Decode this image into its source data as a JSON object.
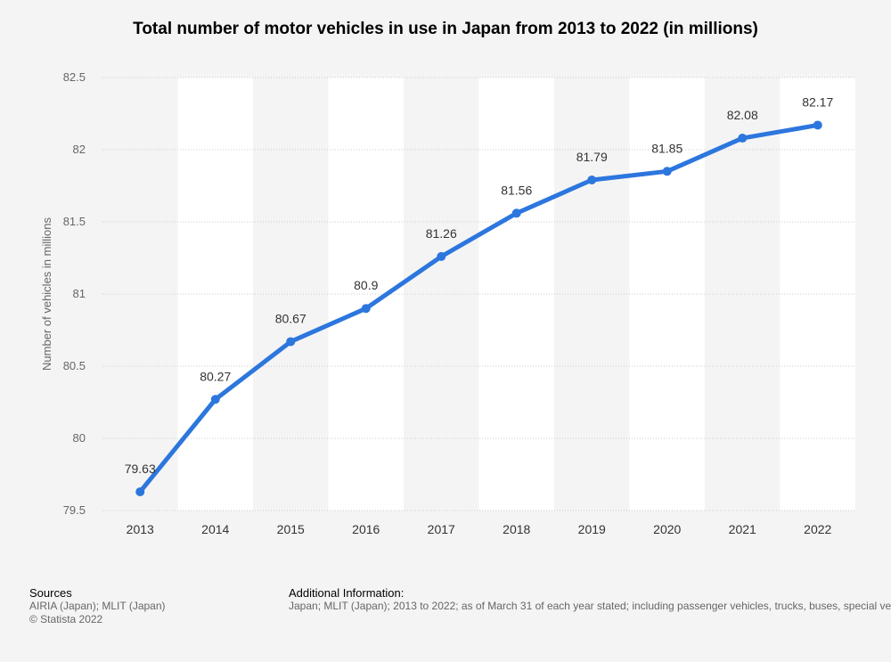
{
  "chart_data": {
    "type": "line",
    "title": "Total number of motor vehicles in use in Japan from 2013 to 2022 (in millions)",
    "xlabel": "",
    "ylabel": "Number of vehicles in millions",
    "categories": [
      "2013",
      "2014",
      "2015",
      "2016",
      "2017",
      "2018",
      "2019",
      "2020",
      "2021",
      "2022"
    ],
    "series": [
      {
        "name": "Motor vehicles in use",
        "values": [
          79.63,
          80.27,
          80.67,
          80.9,
          81.26,
          81.56,
          81.79,
          81.85,
          82.08,
          82.17
        ],
        "labels": [
          "79.63",
          "80.27",
          "80.67",
          "80.9",
          "81.26",
          "81.56",
          "81.79",
          "81.85",
          "82.08",
          "82.17"
        ]
      }
    ],
    "ylim": [
      79.5,
      82.5
    ],
    "yticks": [
      79.5,
      80,
      80.5,
      81,
      81.5,
      82,
      82.5
    ],
    "ytick_labels": [
      "79.5",
      "80",
      "80.5",
      "81",
      "81.5",
      "82",
      "82.5"
    ],
    "grid": true,
    "legend": "none"
  },
  "colors": {
    "line": "#2c76de",
    "band": "#ffffff",
    "grid": "#cccccc",
    "tick_text": "#666666",
    "label_text": "#333333"
  },
  "footer": {
    "sources_heading": "Sources",
    "sources_lines": [
      "AIRIA (Japan); MLIT (Japan)",
      "© Statista 2022"
    ],
    "additional_heading": "Additional Information:",
    "additional_text": "Japan; MLIT (Japan); 2013 to 2022; as of March 31 of each year stated; including passenger vehicles, trucks, buses, special vehicles and motorcycles"
  }
}
